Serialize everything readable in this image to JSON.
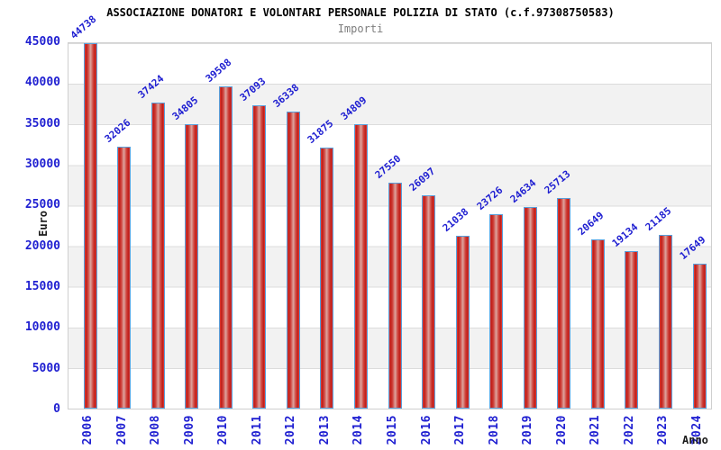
{
  "header": {
    "title": "ASSOCIAZIONE DONATORI E VOLONTARI PERSONALE POLIZIA DI STATO (c.f.97308750583)",
    "subtitle": "Importi"
  },
  "chart_data": {
    "type": "bar",
    "title": "ASSOCIAZIONE DONATORI E VOLONTARI PERSONALE POLIZIA DI STATO (c.f.97308750583)",
    "subtitle": "Importi",
    "xlabel": "Anno",
    "ylabel": "Euro",
    "categories": [
      "2006",
      "2007",
      "2008",
      "2009",
      "2010",
      "2011",
      "2012",
      "2013",
      "2014",
      "2015",
      "2016",
      "2017",
      "2018",
      "2019",
      "2020",
      "2021",
      "2022",
      "2023",
      "2024"
    ],
    "values": [
      44738,
      32026,
      37424,
      34805,
      39508,
      37093,
      36338,
      31875,
      34809,
      27550,
      26097,
      21038,
      23726,
      24634,
      25713,
      20649,
      19134,
      21185,
      17649
    ],
    "ylim": [
      0,
      45000
    ],
    "ytick_step": 5000,
    "grid": "horizontal-bands",
    "legend": null,
    "colors": {
      "bar_fill": "#cc2222",
      "bar_border": "#58a0dc",
      "value_labels": "#1f1fd1",
      "tick_labels": "#1f1fd1",
      "band_fill": "#f2f2f2",
      "gridline": "#dcdcdc",
      "subtitle_text": "#7d7d7d",
      "title_text": "#000000"
    }
  }
}
